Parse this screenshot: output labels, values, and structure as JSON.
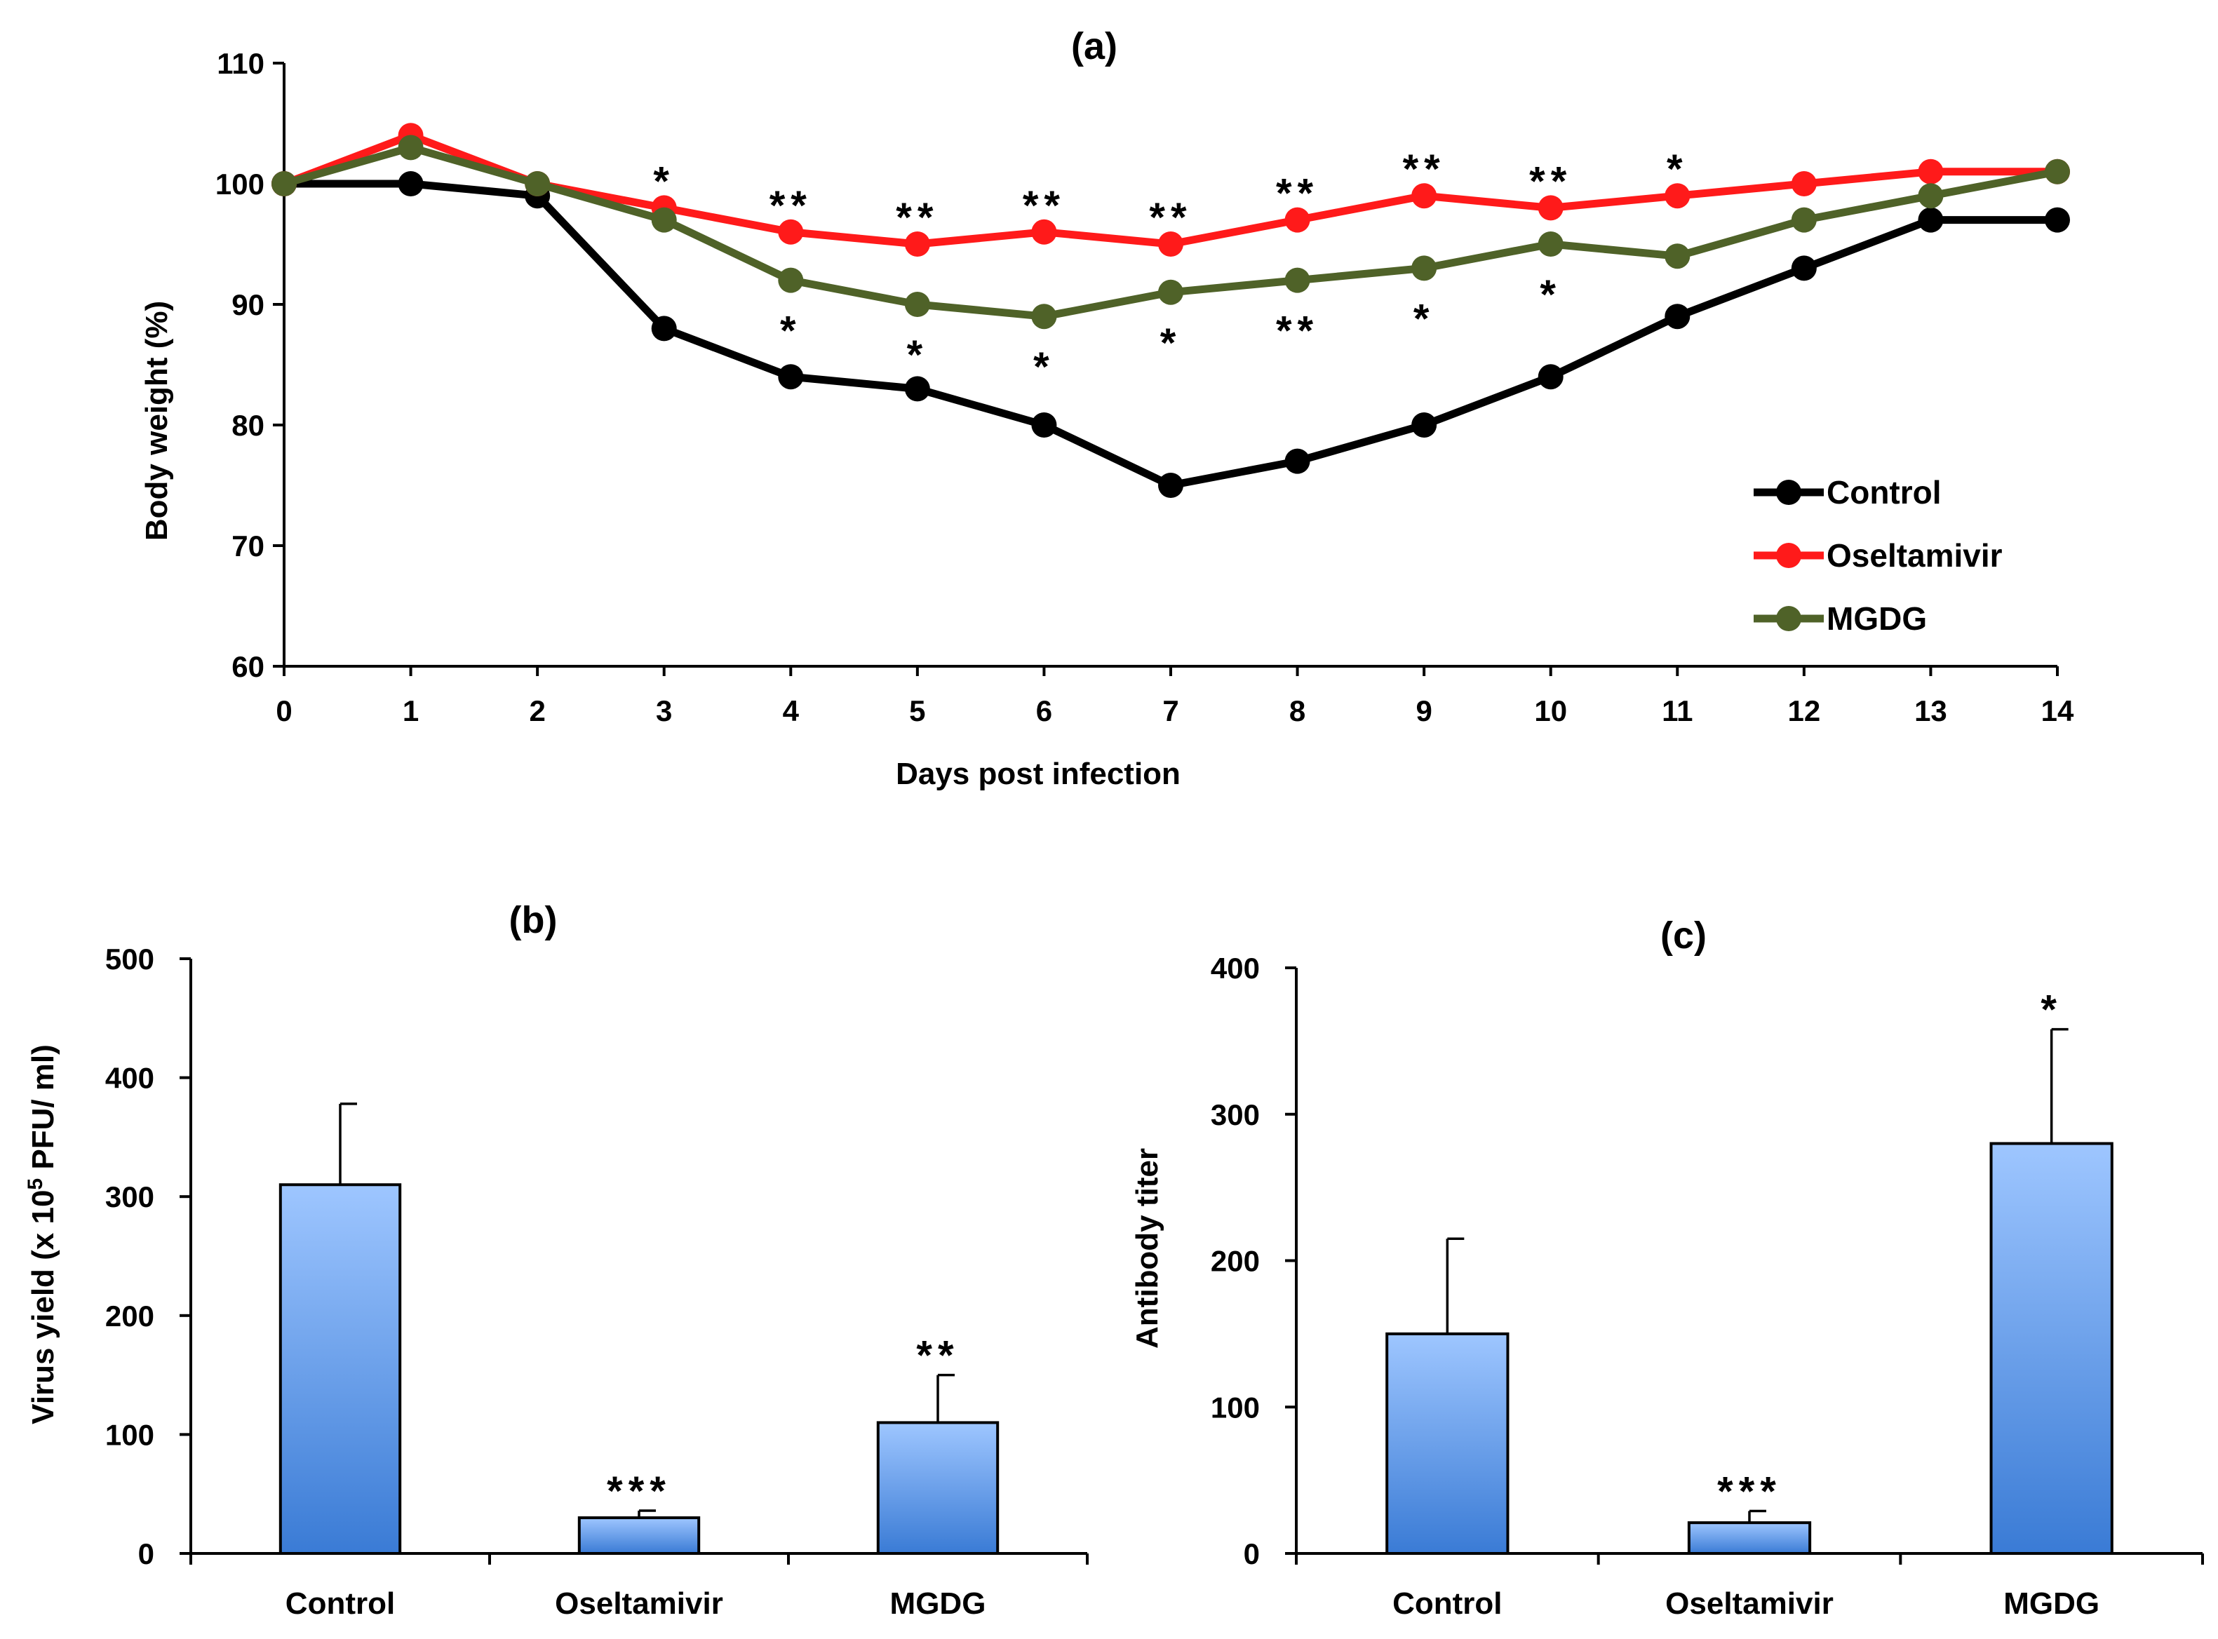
{
  "chart_data": [
    {
      "id": "a",
      "type": "line",
      "title": "(a)",
      "xlabel": "Days post infection",
      "ylabel": "Body weight (%)",
      "x": [
        0,
        1,
        2,
        3,
        4,
        5,
        6,
        7,
        8,
        9,
        10,
        11,
        12,
        13,
        14
      ],
      "ylim": [
        60,
        110
      ],
      "yticks": [
        60,
        70,
        80,
        90,
        100,
        110
      ],
      "series": [
        {
          "name": "Control",
          "color": "#000000",
          "values": [
            100,
            100,
            99,
            88,
            84,
            83,
            80,
            75,
            77,
            80,
            84,
            89,
            93,
            97,
            97
          ]
        },
        {
          "name": "Oseltamivir",
          "color": "#ff1a1a",
          "values": [
            100,
            104,
            100,
            98,
            96,
            95,
            96,
            95,
            97,
            99,
            98,
            99,
            100,
            101,
            101
          ]
        },
        {
          "name": "MGDG",
          "color": "#4f6228",
          "values": [
            100,
            103,
            100,
            97,
            92,
            90,
            89,
            91,
            92,
            93,
            95,
            94,
            97,
            99,
            101
          ]
        }
      ],
      "annotations_upper": [
        {
          "x": 3,
          "text": "*"
        },
        {
          "x": 4,
          "text": "**"
        },
        {
          "x": 5,
          "text": "**"
        },
        {
          "x": 6,
          "text": "**"
        },
        {
          "x": 7,
          "text": "**"
        },
        {
          "x": 8,
          "text": "**"
        },
        {
          "x": 9,
          "text": "**"
        },
        {
          "x": 10,
          "text": "**"
        },
        {
          "x": 11,
          "text": "*"
        }
      ],
      "annotations_lower": [
        {
          "x": 4,
          "text": "*"
        },
        {
          "x": 5,
          "text": "*"
        },
        {
          "x": 6,
          "text": "*"
        },
        {
          "x": 7,
          "text": "*"
        },
        {
          "x": 8,
          "text": "**"
        },
        {
          "x": 9,
          "text": "*"
        },
        {
          "x": 10,
          "text": "*"
        }
      ],
      "legend": "right"
    },
    {
      "id": "b",
      "type": "bar",
      "title": "(b)",
      "ylabel_prefix": "Virus yield (x 10",
      "ylabel_sup": "5",
      "ylabel_suffix": " PFU/ ml)",
      "categories": [
        "Control",
        "Oseltamivir",
        "MGDG"
      ],
      "values": [
        310,
        30,
        110
      ],
      "errors": [
        68,
        6,
        40
      ],
      "significance": [
        "",
        "***",
        "**"
      ],
      "ylim": [
        0,
        500
      ],
      "yticks": [
        0,
        100,
        200,
        300,
        400,
        500
      ]
    },
    {
      "id": "c",
      "type": "bar",
      "title": "(c)",
      "ylabel": "Antibody titer",
      "categories": [
        "Control",
        "Oseltamivir",
        "MGDG"
      ],
      "values": [
        150,
        21,
        280
      ],
      "errors": [
        65,
        8,
        78
      ],
      "significance": [
        "",
        "***",
        "*"
      ],
      "ylim": [
        0,
        400
      ],
      "yticks": [
        0,
        100,
        200,
        300,
        400
      ]
    }
  ],
  "colors": {
    "bar_top": "#9ec6ff",
    "bar_bottom": "#3a7bd5"
  }
}
